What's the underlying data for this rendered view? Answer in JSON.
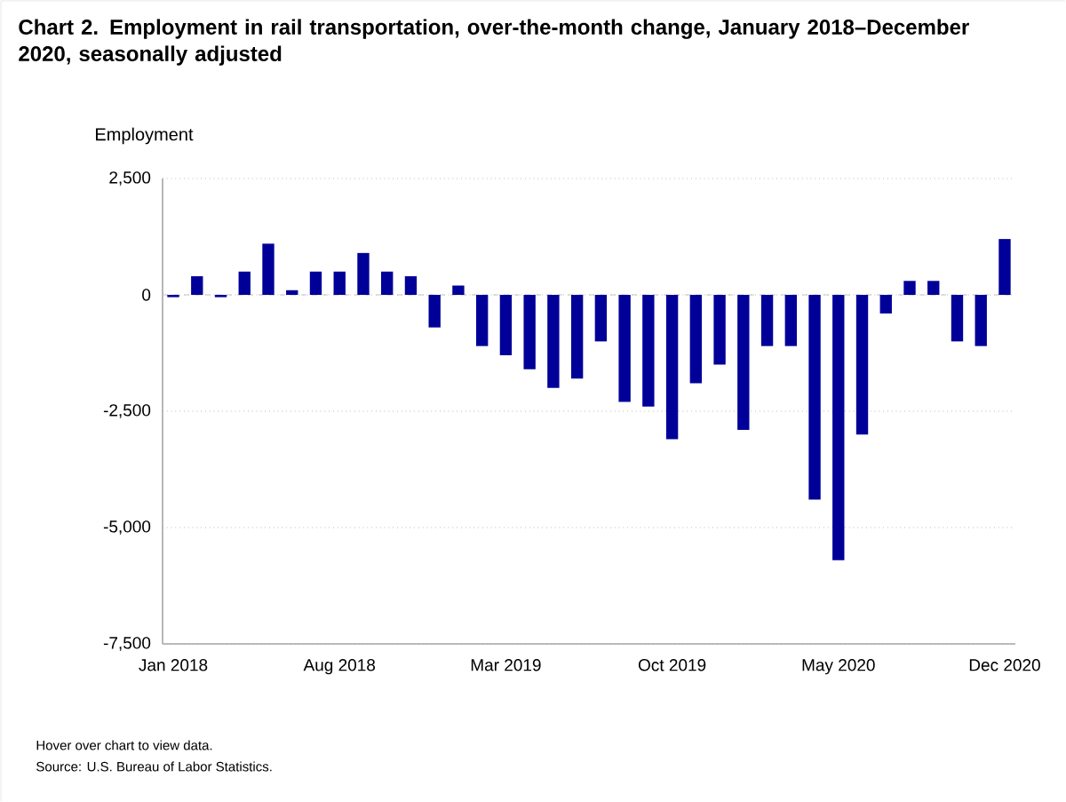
{
  "chart_data": {
    "type": "bar",
    "title": "Chart 2. Employment in rail transportation, over-the-month change, January 2018–December 2020, seasonally adjusted",
    "ylabel": "Employment",
    "categories": [
      "Jan 2018",
      null,
      null,
      null,
      null,
      null,
      null,
      "Aug 2018",
      null,
      null,
      null,
      null,
      null,
      null,
      "Mar 2019",
      null,
      null,
      null,
      null,
      null,
      null,
      "Oct 2019",
      null,
      null,
      null,
      null,
      null,
      null,
      "May 2020",
      null,
      null,
      null,
      null,
      null,
      null,
      "Dec 2020"
    ],
    "values": [
      -50,
      400,
      -50,
      500,
      1100,
      100,
      500,
      500,
      900,
      500,
      400,
      -700,
      200,
      -1100,
      -1300,
      -1600,
      -2000,
      -1800,
      -1000,
      -2300,
      -2400,
      -3100,
      -1900,
      -1500,
      -2900,
      -1100,
      -1100,
      -4400,
      -5700,
      -3000,
      -400,
      300,
      300,
      -1000,
      -1100,
      1200
    ],
    "color": "#000099",
    "ylim": [
      -7500,
      2500
    ],
    "yticks": [
      {
        "value": -7500,
        "label": "-7,500"
      },
      {
        "value": -5000,
        "label": "-5,000"
      },
      {
        "value": -2500,
        "label": "-2,500"
      },
      0,
      {
        "value": 2500,
        "label": "2,500"
      }
    ],
    "grid": "y",
    "ref_lines": [
      {
        "axis": "y",
        "value": 0,
        "color": "#c6c6c6",
        "line_style": "dashed"
      }
    ],
    "annotations": [
      "Hover over chart to view data.",
      "Source: U.S. Bureau of Labor Statistics."
    ]
  }
}
